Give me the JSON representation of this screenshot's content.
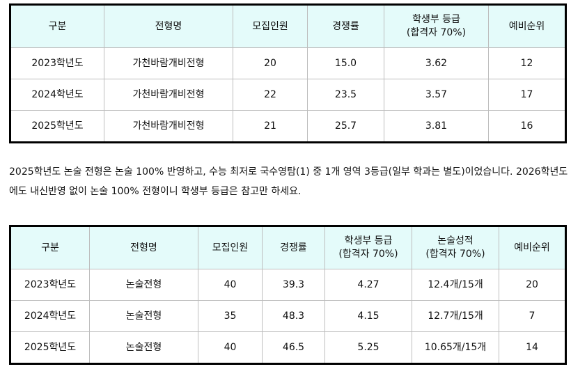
{
  "table1": {
    "headers": [
      "구분",
      "전형명",
      "모집인원",
      "경쟁률",
      "학생부 등급\n(합격자 70%)",
      "예비순위"
    ],
    "rows": [
      [
        "2023학년도",
        "가천바람개비전형",
        "20",
        "15.0",
        "3.62",
        "12"
      ],
      [
        "2024학년도",
        "가천바람개비전형",
        "22",
        "23.5",
        "3.57",
        "17"
      ],
      [
        "2025학년도",
        "가천바람개비전형",
        "21",
        "25.7",
        "3.81",
        "16"
      ]
    ]
  },
  "paragraph": "2025학년도 논술 전형은 논술 100% 반영하고, 수능 최저로 국수영탐(1) 중 1개 영역 3등급(일부 학과는 별도)이었습니다. 2026학년도에도 내신반영 없이 논술 100% 전형이니 학생부 등급은 참고만 하세요.",
  "table2": {
    "headers": [
      "구분",
      "전형명",
      "모집인원",
      "경쟁률",
      "학생부 등급\n(합격자 70%)",
      "논술성적\n(합격자 70%)",
      "예비순위"
    ],
    "rows": [
      [
        "2023학년도",
        "논술전형",
        "40",
        "39.3",
        "4.27",
        "12.4개/15개",
        "20"
      ],
      [
        "2024학년도",
        "논술전형",
        "35",
        "48.3",
        "4.15",
        "12.7개/15개",
        "7"
      ],
      [
        "2025학년도",
        "논술전형",
        "40",
        "46.5",
        "5.25",
        "10.65개/15개",
        "14"
      ]
    ]
  }
}
